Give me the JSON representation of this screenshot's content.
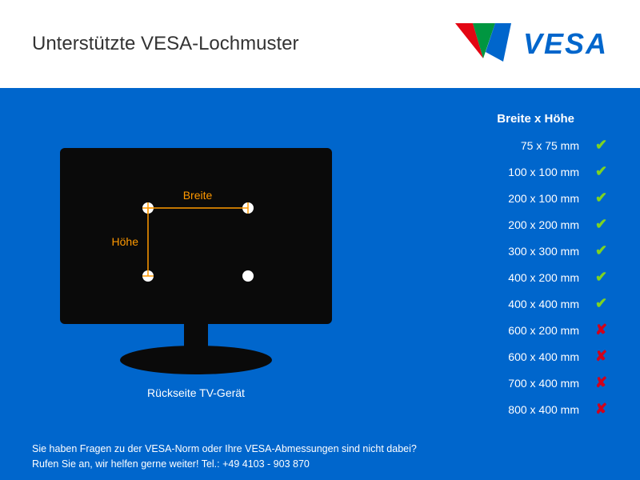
{
  "header": {
    "title": "Unterstützte VESA-Lochmuster",
    "logo_text": "VESA",
    "logo_colors": {
      "left": "#e30613",
      "mid": "#009640",
      "right": "#0066cc"
    }
  },
  "tv": {
    "breite_label": "Breite",
    "hoehe_label": "Höhe",
    "caption": "Rückseite TV-Gerät",
    "line_color": "#ff9900",
    "label_color": "#ff9900",
    "hole_color": "#ffffff",
    "body_color": "#0a0a0a"
  },
  "table": {
    "header": "Breite x Höhe",
    "check_color": "#7ed321",
    "cross_color": "#d0021b",
    "rows": [
      {
        "label": "75 x 75 mm",
        "ok": true
      },
      {
        "label": "100 x 100 mm",
        "ok": true
      },
      {
        "label": "200 x 100 mm",
        "ok": true
      },
      {
        "label": "200 x 200 mm",
        "ok": true
      },
      {
        "label": "300 x 300 mm",
        "ok": true
      },
      {
        "label": "400 x 200 mm",
        "ok": true
      },
      {
        "label": "400 x 400 mm",
        "ok": true
      },
      {
        "label": "600 x 200 mm",
        "ok": false
      },
      {
        "label": "600 x 400 mm",
        "ok": false
      },
      {
        "label": "700 x 400 mm",
        "ok": false
      },
      {
        "label": "800 x 400 mm",
        "ok": false
      }
    ]
  },
  "footer": {
    "line1": "Sie haben Fragen zu der VESA-Norm oder Ihre VESA-Abmessungen sind nicht dabei?",
    "line2": "Rufen Sie an, wir helfen gerne weiter! Tel.: +49 4103 - 903 870"
  },
  "colors": {
    "bg_main": "#0066cc",
    "bg_header": "#ffffff",
    "text_title": "#333333",
    "text_light": "#ffffff"
  }
}
